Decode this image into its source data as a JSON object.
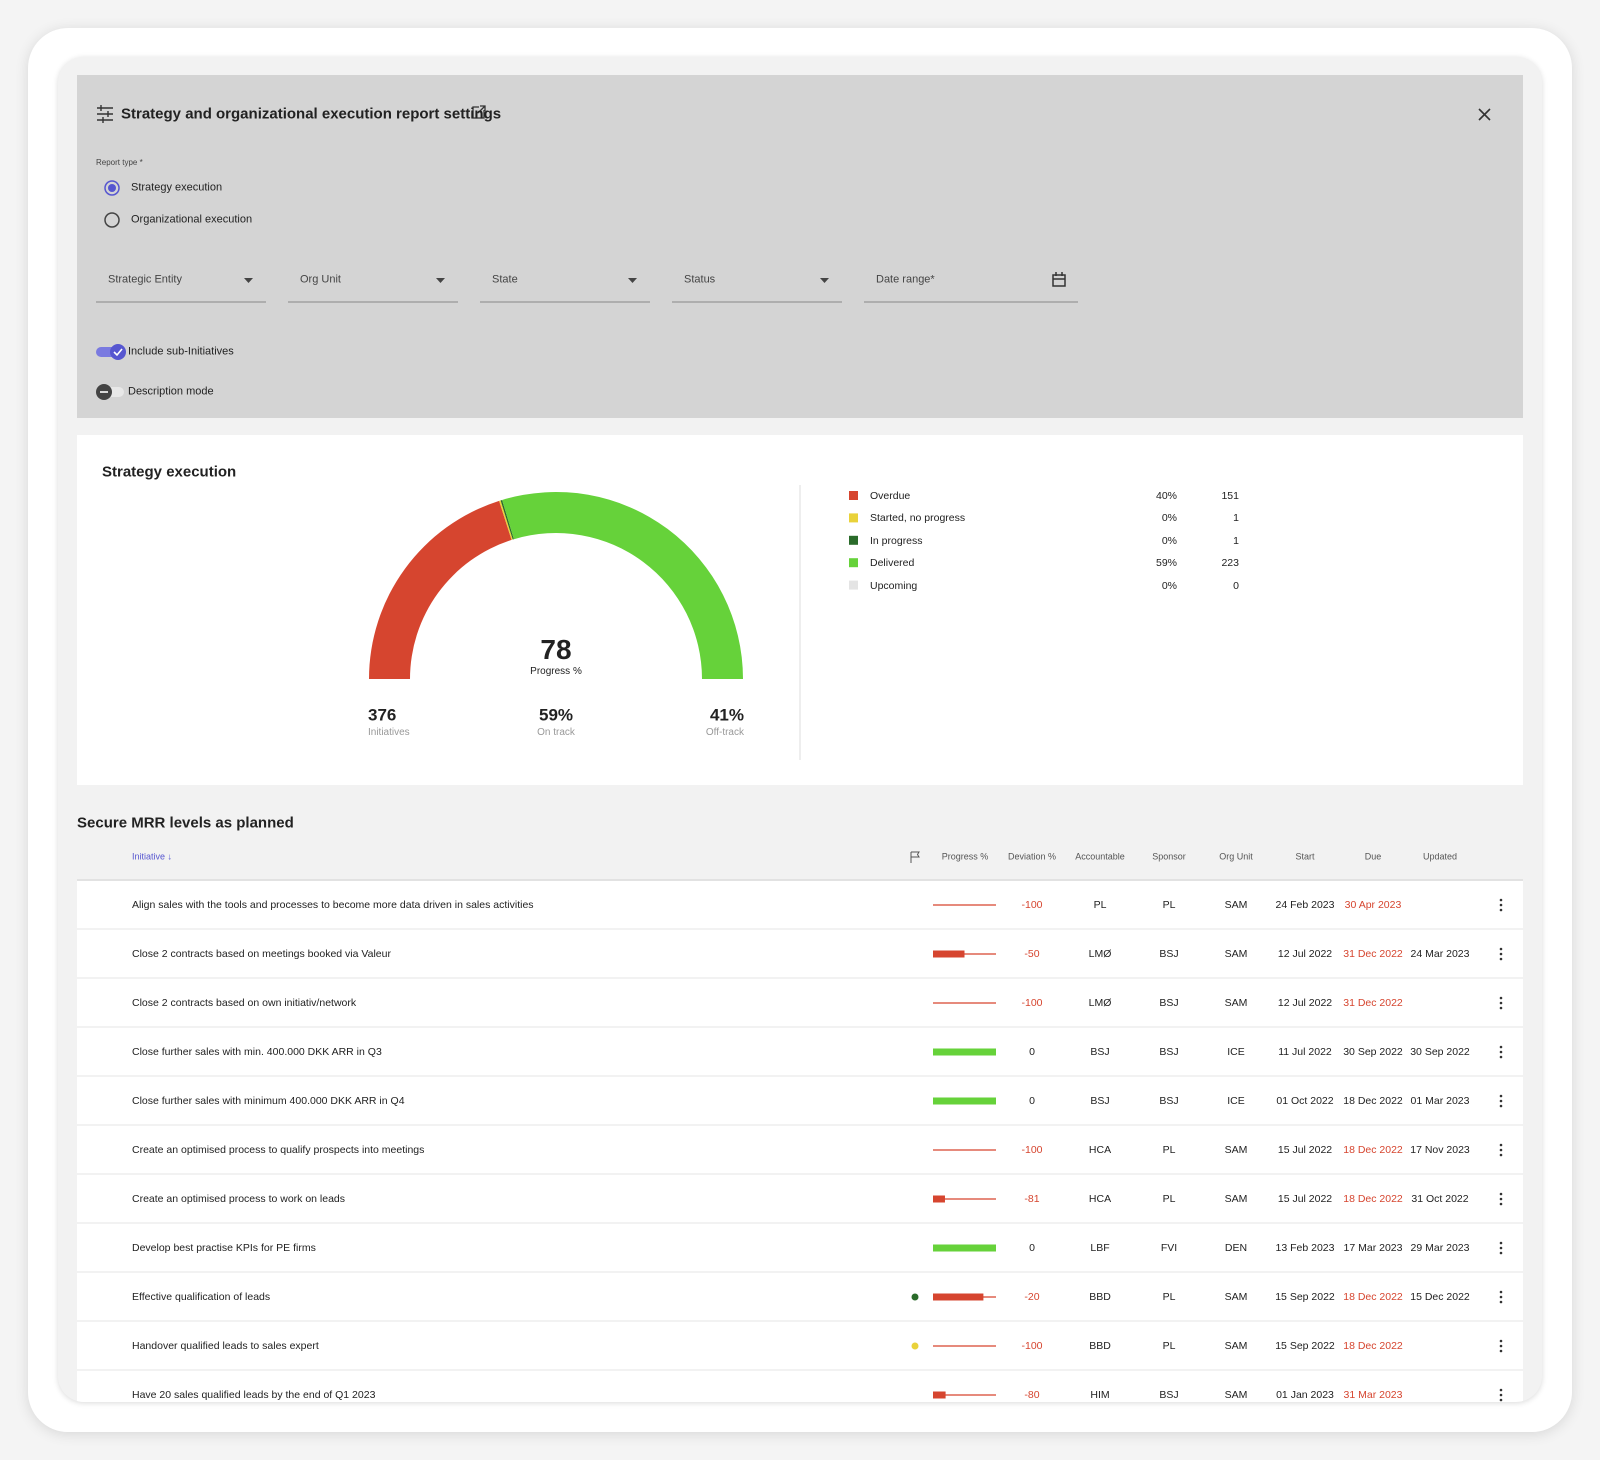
{
  "settings": {
    "title": "Strategy and organizational execution report settings",
    "report_type_label": "Report type *",
    "report_types": [
      {
        "label": "Strategy execution",
        "selected": true
      },
      {
        "label": "Organizational execution",
        "selected": false
      }
    ],
    "filters": [
      "Strategic Entity",
      "Org Unit",
      "State",
      "Status"
    ],
    "date_range": "Date range*",
    "toggles": [
      {
        "label": "Include sub-Initiatives",
        "on": true
      },
      {
        "label": "Description mode",
        "on": false
      }
    ]
  },
  "chart_data": {
    "type": "gauge",
    "title": "Strategy execution",
    "center_value": 78,
    "center_label": "Progress %",
    "series": [
      {
        "name": "Overdue",
        "color": "#d6452f",
        "percent": "40%",
        "count": 151
      },
      {
        "name": "Started, no progress",
        "color": "#e9d23a",
        "percent": "0%",
        "count": 1
      },
      {
        "name": "In progress",
        "color": "#2a6b2a",
        "percent": "0%",
        "count": 1
      },
      {
        "name": "Delivered",
        "color": "#66d23a",
        "percent": "59%",
        "count": 223
      },
      {
        "name": "Upcoming",
        "color": "#e4e4e4",
        "percent": "0%",
        "count": 0
      }
    ],
    "stats": [
      {
        "value": 376,
        "label": "Initiatives"
      },
      {
        "value": "59%",
        "label": "On track"
      },
      {
        "value": "41%",
        "label": "Off-track"
      }
    ]
  },
  "table": {
    "title": "Secure MRR levels as planned",
    "columns": [
      "Initiative ↓",
      "Progress %",
      "Deviation %",
      "Accountable",
      "Sponsor",
      "Org Unit",
      "Start",
      "Due",
      "Updated"
    ],
    "progress_scale": [
      0,
      100
    ],
    "rows": [
      {
        "initiative": "Align sales with the tools and processes to become more data driven in sales activities",
        "flag_color": null,
        "progress": 0,
        "deviation": -100,
        "accountable": "PL",
        "sponsor": "PL",
        "org_unit": "SAM",
        "start": "24 Feb 2023",
        "due": "30 Apr 2023",
        "due_color": "#d6452f",
        "updated": null
      },
      {
        "initiative": "Close 2 contracts based on meetings booked via Valeur",
        "flag_color": null,
        "progress": 50,
        "deviation": -50,
        "accountable": "LMØ",
        "sponsor": "BSJ",
        "org_unit": "SAM",
        "start": "12 Jul 2022",
        "due": "31 Dec 2022",
        "due_color": "#d6452f",
        "updated": "24 Mar 2023"
      },
      {
        "initiative": "Close 2 contracts based on own initiativ/network",
        "flag_color": null,
        "progress": 0,
        "deviation": -100,
        "accountable": "LMØ",
        "sponsor": "BSJ",
        "org_unit": "SAM",
        "start": "12 Jul 2022",
        "due": "31 Dec 2022",
        "due_color": "#d6452f",
        "updated": null
      },
      {
        "initiative": "Close further sales with min. 400.000 DKK ARR in Q3",
        "flag_color": null,
        "progress": 100,
        "deviation": 0,
        "accountable": "BSJ",
        "sponsor": "BSJ",
        "org_unit": "ICE",
        "start": "11 Jul 2022",
        "due": "30 Sep 2022",
        "due_color": "#222222",
        "updated": "30 Sep 2022"
      },
      {
        "initiative": "Close further sales with minimum 400.000 DKK ARR in Q4",
        "flag_color": null,
        "progress": 100,
        "deviation": 0,
        "accountable": "BSJ",
        "sponsor": "BSJ",
        "org_unit": "ICE",
        "start": "01 Oct 2022",
        "due": "18 Dec 2022",
        "due_color": "#222222",
        "updated": "01 Mar 2023"
      },
      {
        "initiative": "Create an optimised process to qualify prospects into meetings",
        "flag_color": null,
        "progress": 0,
        "deviation": -100,
        "accountable": "HCA",
        "sponsor": "PL",
        "org_unit": "SAM",
        "start": "15 Jul 2022",
        "due": "18 Dec 2022",
        "due_color": "#d6452f",
        "updated": "17 Nov 2023"
      },
      {
        "initiative": "Create an optimised process to work on leads",
        "flag_color": null,
        "progress": 19,
        "deviation": -81,
        "accountable": "HCA",
        "sponsor": "PL",
        "org_unit": "SAM",
        "start": "15 Jul 2022",
        "due": "18 Dec 2022",
        "due_color": "#d6452f",
        "updated": "31 Oct 2022"
      },
      {
        "initiative": "Develop best practise KPIs for PE firms",
        "flag_color": null,
        "progress": 100,
        "deviation": 0,
        "accountable": "LBF",
        "sponsor": "FVI",
        "org_unit": "DEN",
        "start": "13 Feb 2023",
        "due": "17 Mar 2023",
        "due_color": "#222222",
        "updated": "29 Mar 2023"
      },
      {
        "initiative": "Effective qualification of leads",
        "flag_color": "#2a6b2a",
        "progress": 80,
        "deviation": -20,
        "accountable": "BBD",
        "sponsor": "PL",
        "org_unit": "SAM",
        "start": "15 Sep 2022",
        "due": "18 Dec 2022",
        "due_color": "#d6452f",
        "updated": "15 Dec 2022"
      },
      {
        "initiative": "Handover qualified leads to sales expert",
        "flag_color": "#e9d23a",
        "progress": 0,
        "deviation": -100,
        "accountable": "BBD",
        "sponsor": "PL",
        "org_unit": "SAM",
        "start": "15 Sep 2022",
        "due": "18 Dec 2022",
        "due_color": "#d6452f",
        "updated": null
      },
      {
        "initiative": "Have 20 sales qualified leads by the end of Q1 2023",
        "flag_color": null,
        "progress": 20,
        "deviation": -80,
        "accountable": "HIM",
        "sponsor": "BSJ",
        "org_unit": "SAM",
        "start": "01 Jan 2023",
        "due": "31 Mar 2023",
        "due_color": "#d6452f",
        "updated": null
      }
    ]
  }
}
